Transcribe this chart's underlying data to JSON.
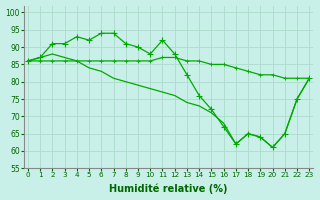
{
  "xlabel": "Humidité relative (%)",
  "background_color": "#c8f0e8",
  "grid_color": "#b0ddd0",
  "line_color": "#00aa00",
  "xlim": [
    -0.3,
    23.3
  ],
  "ylim": [
    55,
    102
  ],
  "yticks": [
    55,
    60,
    65,
    70,
    75,
    80,
    85,
    90,
    95,
    100
  ],
  "xticks": [
    0,
    1,
    2,
    3,
    4,
    5,
    6,
    7,
    8,
    9,
    10,
    11,
    12,
    13,
    14,
    15,
    16,
    17,
    18,
    19,
    20,
    21,
    22,
    23
  ],
  "series_upper": [
    86,
    87,
    91,
    91,
    93,
    92,
    94,
    94,
    91,
    90,
    88,
    92,
    88,
    82,
    76,
    72,
    67,
    62,
    65,
    64,
    61,
    65,
    75,
    81
  ],
  "series_flat": [
    86,
    86,
    86,
    86,
    86,
    86,
    86,
    86,
    86,
    86,
    86,
    87,
    87,
    86,
    86,
    85,
    85,
    84,
    83,
    82,
    82,
    81,
    81,
    81
  ],
  "series_lower": [
    86,
    87,
    88,
    87,
    86,
    84,
    83,
    81,
    80,
    79,
    78,
    77,
    76,
    74,
    73,
    71,
    68,
    62,
    65,
    64,
    61,
    65,
    75,
    81
  ]
}
